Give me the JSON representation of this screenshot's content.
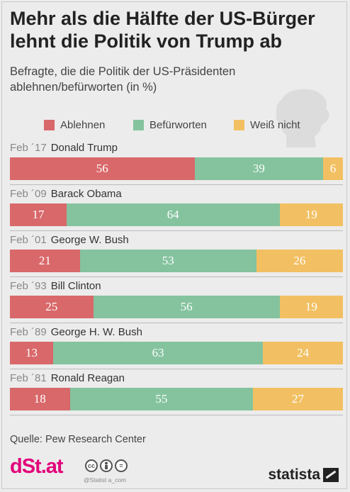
{
  "title": "Mehr als die Hälfte der US-Bürger\nlehnt die Politik von Trump ab",
  "subtitle": "Befragte, die die Politik der US-Präsidenten\nablehnen/befürworten (in %)",
  "source": "Quelle: Pew Research Center",
  "brand": "dSt.at",
  "credit": "@Statist a_com",
  "statista": "statista",
  "colors": {
    "Ablehnen": "#d9686a",
    "Befürworten": "#84c39e",
    "Weiß nicht": "#f2c062",
    "background": "#ececec"
  },
  "chart_data": {
    "type": "bar",
    "stacked": true,
    "orientation": "horizontal",
    "unit": "%",
    "legend_position": "top",
    "categories": [
      "Feb ´17 Donald Trump",
      "Feb ´09 Barack Obama",
      "Feb ´01 George W. Bush",
      "Feb ´93 Bill Clinton",
      "Feb ´89 George H. W. Bush",
      "Feb ´81 Ronald Reagan"
    ],
    "rows": [
      {
        "date": "Feb ´17",
        "name": "Donald Trump"
      },
      {
        "date": "Feb ´09",
        "name": "Barack Obama"
      },
      {
        "date": "Feb ´01",
        "name": "George W. Bush"
      },
      {
        "date": "Feb ´93",
        "name": "Bill Clinton"
      },
      {
        "date": "Feb ´89",
        "name": "George H. W. Bush"
      },
      {
        "date": "Feb ´81",
        "name": "Ronald Reagan"
      }
    ],
    "series": [
      {
        "name": "Ablehnen",
        "values": [
          56,
          17,
          21,
          25,
          13,
          18
        ]
      },
      {
        "name": "Befürworten",
        "values": [
          39,
          64,
          53,
          56,
          63,
          55
        ]
      },
      {
        "name": "Weiß nicht",
        "values": [
          6,
          19,
          26,
          19,
          24,
          27
        ]
      }
    ]
  }
}
